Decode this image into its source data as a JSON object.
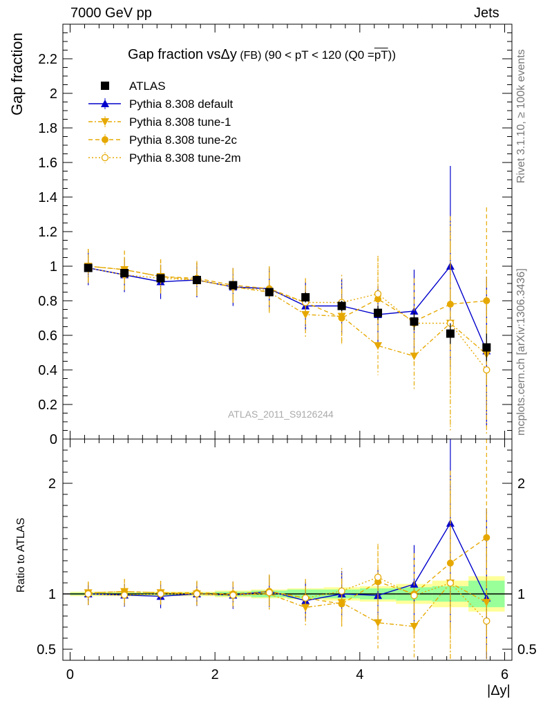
{
  "header": {
    "left": "7000 GeV pp",
    "right": "Jets"
  },
  "side_text": {
    "upper": "Rivet 3.1.10, ≥ 100k events",
    "lower": "mcplots.cern.ch [arXiv:1306.3436]"
  },
  "title": {
    "main": "Gap fraction vsΔy",
    "small1": " (FB) ",
    "rest": "(90 < pT < 120 (Q0 =",
    "over": "pT",
    "end": "))"
  },
  "watermark": "ATLAS_2011_S9126244",
  "colors": {
    "atlas": "#000000",
    "default": "#0000cc",
    "tunes": "#e6a800",
    "band_outer": "#ffff99",
    "band_inner": "#99ff99"
  },
  "chart_data": {
    "type": "scatter",
    "xlabel": "|Δy|",
    "ylabel_main": "Gap fraction",
    "ylabel_ratio": "Ratio to ATLAS",
    "xlim": [
      -0.1,
      6.1
    ],
    "ylim_main": [
      0,
      2.4
    ],
    "ylim_ratio": [
      0.4,
      2.4
    ],
    "x_ticks": [
      "0",
      "2",
      "4",
      "6"
    ],
    "y_ticks_main": [
      "0",
      "0.2",
      "0.4",
      "0.6",
      "0.8",
      "1",
      "1.2",
      "1.4",
      "1.6",
      "1.8",
      "2",
      "2.2"
    ],
    "y_ticks_ratio": [
      "0.5",
      "1",
      "2"
    ],
    "x": [
      0.25,
      0.75,
      1.25,
      1.75,
      2.25,
      2.75,
      3.25,
      3.75,
      4.25,
      4.75,
      5.25,
      5.75
    ],
    "bins": [
      0,
      0.5,
      1,
      1.5,
      2,
      2.5,
      3,
      3.5,
      4,
      4.5,
      5,
      5.5,
      6
    ],
    "series": [
      {
        "name": "ATLAS",
        "key": "atlas",
        "marker": "square",
        "values": [
          0.99,
          0.96,
          0.93,
          0.92,
          0.89,
          0.85,
          0.82,
          0.77,
          0.73,
          0.68,
          0.61,
          0.53
        ],
        "err": [
          0.01,
          0.01,
          0.01,
          0.01,
          0.01,
          0.02,
          0.03,
          0.03,
          0.04,
          0.05,
          0.06,
          0.08
        ]
      },
      {
        "name": "Pythia 8.308 default",
        "key": "default",
        "marker": "triangle-up",
        "dash": "",
        "values": [
          0.99,
          0.95,
          0.91,
          0.92,
          0.88,
          0.87,
          0.77,
          0.77,
          0.72,
          0.74,
          1.0,
          0.51
        ],
        "err": [
          0.1,
          0.1,
          0.1,
          0.1,
          0.11,
          0.12,
          0.14,
          0.16,
          0.17,
          0.24,
          0.58,
          0.43
        ]
      },
      {
        "name": "Pythia 8.308 tune-1",
        "key": "tune1",
        "marker": "triangle-down",
        "dash": "6,3,2,3",
        "values": [
          1.0,
          0.98,
          0.94,
          0.92,
          0.88,
          0.85,
          0.72,
          0.71,
          0.54,
          0.48,
          0.67,
          0.49
        ],
        "err": [
          0.1,
          0.11,
          0.1,
          0.1,
          0.1,
          0.12,
          0.14,
          0.16,
          0.17,
          0.19,
          0.62,
          0.43
        ]
      },
      {
        "name": "Pythia 8.308 tune-2c",
        "key": "tune2c",
        "marker": "circle",
        "dash": "6,4",
        "values": [
          1.0,
          0.98,
          0.94,
          0.93,
          0.89,
          0.87,
          0.79,
          0.7,
          0.81,
          0.68,
          0.78,
          0.8
        ],
        "err": [
          0.1,
          0.11,
          0.1,
          0.1,
          0.1,
          0.13,
          0.14,
          0.16,
          0.24,
          0.25,
          0.4,
          0.54
        ]
      },
      {
        "name": "Pythia 8.308 tune-2m",
        "key": "tune2m",
        "marker": "open-circle",
        "dash": "2,3",
        "values": [
          0.99,
          0.95,
          0.93,
          0.92,
          0.88,
          0.86,
          0.79,
          0.79,
          0.84,
          0.67,
          0.67,
          0.4
        ],
        "err": [
          0.1,
          0.1,
          0.1,
          0.1,
          0.1,
          0.12,
          0.14,
          0.16,
          0.22,
          0.24,
          0.6,
          0.38
        ]
      }
    ],
    "ratio_band": {
      "outer": [
        0.02,
        0.02,
        0.02,
        0.02,
        0.03,
        0.04,
        0.05,
        0.06,
        0.07,
        0.09,
        0.12,
        0.16
      ],
      "inner": [
        0.01,
        0.01,
        0.01,
        0.01,
        0.02,
        0.03,
        0.04,
        0.04,
        0.05,
        0.06,
        0.07,
        0.12
      ]
    },
    "legend": [
      "ATLAS",
      "Pythia 8.308 default",
      "Pythia 8.308 tune-1",
      "Pythia 8.308 tune-2c",
      "Pythia 8.308 tune-2m"
    ],
    "legend_position": "top-left",
    "grid": false
  }
}
